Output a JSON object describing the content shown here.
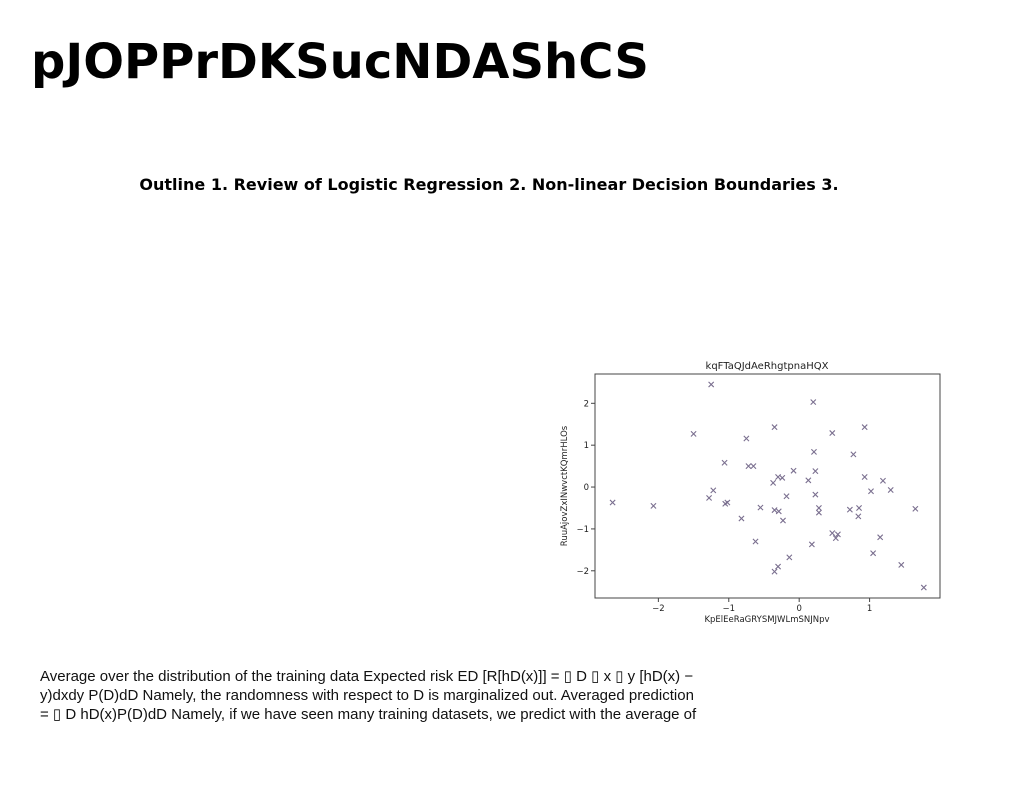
{
  "page": {
    "title": "pJOPPrDKSucNDAShCS",
    "outline": "Outline 1. Review of Logistic Regression 2. Non-linear Decision Boundaries 3.",
    "body_lines": [
      "Average over the distribution of the training data Expected risk ED [R[hD(x)]] = ▯ D ▯ x ▯ y [hD(x) −",
      "y)dxdy P(D)dD Namely, the randomness with respect to D is marginalized out. Averaged prediction",
      "= ▯ D hD(x)P(D)dD Namely, if we have seen many training datasets, we predict with the average of"
    ]
  },
  "chart_data": {
    "type": "scatter",
    "title": "kqFTaQJdAeRhgtpnaHQX",
    "xlabel": "KpElEeRaGRYSMJWLmSNJNpv",
    "ylabel": "RuuAjovZxINwvctKQmrHLOs",
    "xlim": [
      -2.9,
      2.0
    ],
    "ylim": [
      -2.65,
      2.7
    ],
    "xticks": [
      -2,
      -1,
      0,
      1
    ],
    "yticks": [
      -2,
      -1,
      0,
      1,
      2
    ],
    "marker": "x",
    "marker_color": "#7a6f8f",
    "grid": false,
    "points": [
      [
        -1.25,
        2.45
      ],
      [
        0.2,
        2.03
      ],
      [
        -0.35,
        1.43
      ],
      [
        0.93,
        1.43
      ],
      [
        -1.5,
        1.27
      ],
      [
        0.47,
        1.29
      ],
      [
        -0.75,
        1.16
      ],
      [
        0.21,
        0.84
      ],
      [
        0.77,
        0.78
      ],
      [
        -1.06,
        0.58
      ],
      [
        -0.72,
        0.5
      ],
      [
        -0.65,
        0.5
      ],
      [
        0.23,
        0.38
      ],
      [
        -0.08,
        0.39
      ],
      [
        -0.3,
        0.24
      ],
      [
        -0.24,
        0.22
      ],
      [
        0.93,
        0.24
      ],
      [
        1.19,
        0.15
      ],
      [
        0.13,
        0.16
      ],
      [
        -0.37,
        0.1
      ],
      [
        1.3,
        -0.07
      ],
      [
        1.02,
        -0.1
      ],
      [
        -1.22,
        -0.08
      ],
      [
        0.23,
        -0.18
      ],
      [
        -0.18,
        -0.22
      ],
      [
        -1.28,
        -0.26
      ],
      [
        -2.65,
        -0.37
      ],
      [
        -1.05,
        -0.4
      ],
      [
        -1.02,
        -0.37
      ],
      [
        -2.07,
        -0.45
      ],
      [
        -0.55,
        -0.49
      ],
      [
        0.28,
        -0.5
      ],
      [
        0.72,
        -0.54
      ],
      [
        0.85,
        -0.5
      ],
      [
        1.65,
        -0.52
      ],
      [
        -0.35,
        -0.55
      ],
      [
        -0.29,
        -0.58
      ],
      [
        0.28,
        -0.61
      ],
      [
        0.84,
        -0.7
      ],
      [
        -0.82,
        -0.75
      ],
      [
        -0.23,
        -0.8
      ],
      [
        0.47,
        -1.1
      ],
      [
        0.55,
        -1.13
      ],
      [
        0.52,
        -1.22
      ],
      [
        1.15,
        -1.2
      ],
      [
        -0.62,
        -1.3
      ],
      [
        0.18,
        -1.37
      ],
      [
        1.05,
        -1.58
      ],
      [
        -0.14,
        -1.68
      ],
      [
        1.45,
        -1.86
      ],
      [
        -0.3,
        -1.9
      ],
      [
        -0.35,
        -2.02
      ],
      [
        1.77,
        -2.4
      ]
    ]
  }
}
